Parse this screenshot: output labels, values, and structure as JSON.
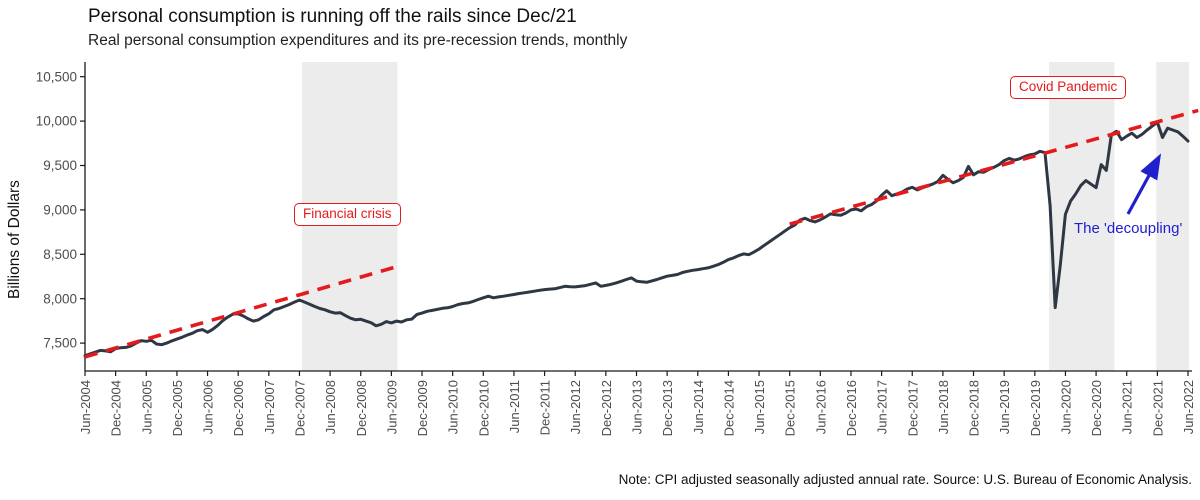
{
  "title": "Personal consumption is running off the rails since Dec/21",
  "subtitle": "Real personal consumption expenditures and its pre-recession trends, monthly",
  "note": "Note: CPI adjusted seasonally adjusted annual rate. Source: U.S. Bureau of Economic Analysis.",
  "colors": {
    "line": "#2e3743",
    "trend_red": "#e41a1c",
    "annotation_blue": "#2020cf",
    "band_gray": "#ececec",
    "axis": "#1a1a1a",
    "tick_label": "#4d4d4d"
  },
  "chart_data": {
    "type": "line",
    "title": "Personal consumption is running off the rails since Dec/21",
    "subtitle": "Real personal consumption expenditures and its pre-recession trends, monthly",
    "xlabel": "",
    "ylabel": "Billions of Dollars",
    "frequency": "monthly",
    "x_start": "Jun-2004",
    "x_end": "Jun-2022",
    "ylim": [
      7300,
      10660
    ],
    "grid": false,
    "legend": false,
    "y_ticks": [
      {
        "label": "10,500",
        "value": 10500
      },
      {
        "label": "10,000",
        "value": 10000
      },
      {
        "label": "9,500",
        "value": 9500
      },
      {
        "label": "9,000",
        "value": 9000
      },
      {
        "label": "8,500",
        "value": 8500
      },
      {
        "label": "8,000",
        "value": 8000
      },
      {
        "label": "7,500",
        "value": 7500
      }
    ],
    "x_tick_labels": [
      "Jun-2004",
      "Dec-2004",
      "Jun-2005",
      "Dec-2005",
      "Jun-2006",
      "Dec-2006",
      "Jun-2007",
      "Dec-2007",
      "Jun-2008",
      "Dec-2008",
      "Jun-2009",
      "Dec-2009",
      "Jun-2010",
      "Dec-2010",
      "Jun-2011",
      "Dec-2011",
      "Jun-2012",
      "Dec-2012",
      "Jun-2013",
      "Dec-2013",
      "Jun-2014",
      "Dec-2014",
      "Jun-2015",
      "Dec-2015",
      "Jun-2016",
      "Dec-2016",
      "Jun-2017",
      "Dec-2017",
      "Jun-2018",
      "Dec-2018",
      "Jun-2019",
      "Dec-2019",
      "Jun-2020",
      "Dec-2020",
      "Jun-2021",
      "Dec-2021",
      "Jun-2022"
    ],
    "series": [
      {
        "name": "Real personal consumption expenditures",
        "values": [
          7358,
          7378,
          7398,
          7418,
          7412,
          7402,
          7438,
          7448,
          7452,
          7468,
          7500,
          7528,
          7520,
          7532,
          7490,
          7482,
          7500,
          7525,
          7545,
          7565,
          7590,
          7610,
          7640,
          7652,
          7622,
          7655,
          7700,
          7755,
          7795,
          7828,
          7830,
          7805,
          7772,
          7748,
          7762,
          7800,
          7830,
          7875,
          7890,
          7912,
          7935,
          7962,
          7985,
          7962,
          7938,
          7912,
          7890,
          7875,
          7852,
          7838,
          7842,
          7810,
          7780,
          7762,
          7768,
          7748,
          7730,
          7695,
          7712,
          7742,
          7728,
          7748,
          7738,
          7762,
          7770,
          7822,
          7838,
          7858,
          7868,
          7880,
          7892,
          7898,
          7912,
          7934,
          7946,
          7953,
          7970,
          7991,
          8010,
          8028,
          8010,
          8020,
          8028,
          8038,
          8047,
          8058,
          8066,
          8075,
          8084,
          8095,
          8103,
          8108,
          8111,
          8125,
          8140,
          8135,
          8133,
          8140,
          8148,
          8162,
          8178,
          8140,
          8150,
          8162,
          8178,
          8196,
          8216,
          8234,
          8198,
          8190,
          8185,
          8200,
          8216,
          8235,
          8253,
          8262,
          8272,
          8295,
          8309,
          8320,
          8328,
          8338,
          8347,
          8365,
          8384,
          8410,
          8440,
          8460,
          8485,
          8505,
          8495,
          8525,
          8560,
          8600,
          8640,
          8680,
          8720,
          8760,
          8800,
          8830,
          8885,
          8905,
          8880,
          8865,
          8890,
          8920,
          8955,
          8945,
          8940,
          8965,
          9000,
          9010,
          8990,
          9035,
          9060,
          9100,
          9165,
          9215,
          9160,
          9180,
          9200,
          9235,
          9255,
          9225,
          9250,
          9270,
          9290,
          9320,
          9390,
          9345,
          9305,
          9330,
          9365,
          9490,
          9395,
          9430,
          9425,
          9455,
          9480,
          9510,
          9555,
          9580,
          9560,
          9575,
          9600,
          9620,
          9630,
          9660,
          9645,
          9050,
          7900,
          8380,
          8950,
          9100,
          9180,
          9275,
          9330,
          9290,
          9250,
          9510,
          9445,
          9850,
          9885,
          9790,
          9830,
          9865,
          9815,
          9850,
          9900,
          9945,
          9985,
          9815,
          9920,
          9900,
          9880,
          9830,
          9775
        ]
      }
    ],
    "trend_segments": [
      {
        "name": "pre-financial-crisis trend",
        "start_index": 0,
        "start_value": 7345,
        "end_index": 61,
        "end_value": 8360
      },
      {
        "name": "pre-covid trend",
        "start_index": 138,
        "start_value": 8840,
        "end_index": 218,
        "end_value": 10120
      }
    ],
    "shaded_bands": [
      {
        "label": "Financial crisis",
        "start_index": 42.5,
        "end_index": 61.2
      },
      {
        "label": "Covid Pandemic",
        "start_index": 188.8,
        "end_index": 201.6
      },
      {
        "label": "",
        "start_index": 209.8,
        "end_index": 216.2
      }
    ],
    "annotations": {
      "financial_crisis_label": "Financial crisis",
      "covid_label": "Covid Pandemic",
      "decoupling_label": "The 'decoupling'"
    }
  }
}
